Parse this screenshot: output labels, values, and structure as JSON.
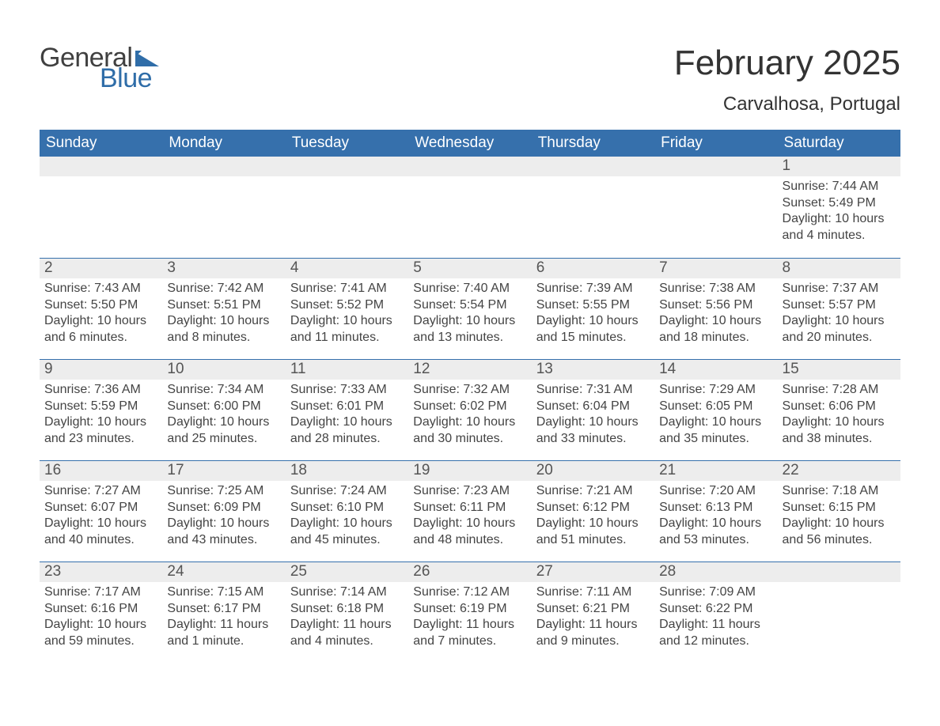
{
  "brand": {
    "general": "General",
    "blue": "Blue",
    "flag_color": "#2f6da8"
  },
  "title": "February 2025",
  "location": "Carvalhosa, Portugal",
  "weekday_headers": [
    "Sunday",
    "Monday",
    "Tuesday",
    "Wednesday",
    "Thursday",
    "Friday",
    "Saturday"
  ],
  "colors": {
    "header_bg": "#3670ac",
    "header_text": "#ffffff",
    "bar_bg": "#ededed",
    "bar_text": "#555555",
    "body_text": "#444444",
    "rule": "#3670ac"
  },
  "typography": {
    "title_fontsize": 44,
    "location_fontsize": 24,
    "header_fontsize": 19,
    "daynum_fontsize": 19,
    "body_fontsize": 16
  },
  "layout": {
    "cols": 7,
    "rows": 5,
    "first_weekday_index": 6,
    "days_in_month": 28
  },
  "weeks": [
    [
      null,
      null,
      null,
      null,
      null,
      null,
      {
        "n": "1",
        "sunrise": "Sunrise: 7:44 AM",
        "sunset": "Sunset: 5:49 PM",
        "day1": "Daylight: 10 hours",
        "day2": "and 4 minutes."
      }
    ],
    [
      {
        "n": "2",
        "sunrise": "Sunrise: 7:43 AM",
        "sunset": "Sunset: 5:50 PM",
        "day1": "Daylight: 10 hours",
        "day2": "and 6 minutes."
      },
      {
        "n": "3",
        "sunrise": "Sunrise: 7:42 AM",
        "sunset": "Sunset: 5:51 PM",
        "day1": "Daylight: 10 hours",
        "day2": "and 8 minutes."
      },
      {
        "n": "4",
        "sunrise": "Sunrise: 7:41 AM",
        "sunset": "Sunset: 5:52 PM",
        "day1": "Daylight: 10 hours",
        "day2": "and 11 minutes."
      },
      {
        "n": "5",
        "sunrise": "Sunrise: 7:40 AM",
        "sunset": "Sunset: 5:54 PM",
        "day1": "Daylight: 10 hours",
        "day2": "and 13 minutes."
      },
      {
        "n": "6",
        "sunrise": "Sunrise: 7:39 AM",
        "sunset": "Sunset: 5:55 PM",
        "day1": "Daylight: 10 hours",
        "day2": "and 15 minutes."
      },
      {
        "n": "7",
        "sunrise": "Sunrise: 7:38 AM",
        "sunset": "Sunset: 5:56 PM",
        "day1": "Daylight: 10 hours",
        "day2": "and 18 minutes."
      },
      {
        "n": "8",
        "sunrise": "Sunrise: 7:37 AM",
        "sunset": "Sunset: 5:57 PM",
        "day1": "Daylight: 10 hours",
        "day2": "and 20 minutes."
      }
    ],
    [
      {
        "n": "9",
        "sunrise": "Sunrise: 7:36 AM",
        "sunset": "Sunset: 5:59 PM",
        "day1": "Daylight: 10 hours",
        "day2": "and 23 minutes."
      },
      {
        "n": "10",
        "sunrise": "Sunrise: 7:34 AM",
        "sunset": "Sunset: 6:00 PM",
        "day1": "Daylight: 10 hours",
        "day2": "and 25 minutes."
      },
      {
        "n": "11",
        "sunrise": "Sunrise: 7:33 AM",
        "sunset": "Sunset: 6:01 PM",
        "day1": "Daylight: 10 hours",
        "day2": "and 28 minutes."
      },
      {
        "n": "12",
        "sunrise": "Sunrise: 7:32 AM",
        "sunset": "Sunset: 6:02 PM",
        "day1": "Daylight: 10 hours",
        "day2": "and 30 minutes."
      },
      {
        "n": "13",
        "sunrise": "Sunrise: 7:31 AM",
        "sunset": "Sunset: 6:04 PM",
        "day1": "Daylight: 10 hours",
        "day2": "and 33 minutes."
      },
      {
        "n": "14",
        "sunrise": "Sunrise: 7:29 AM",
        "sunset": "Sunset: 6:05 PM",
        "day1": "Daylight: 10 hours",
        "day2": "and 35 minutes."
      },
      {
        "n": "15",
        "sunrise": "Sunrise: 7:28 AM",
        "sunset": "Sunset: 6:06 PM",
        "day1": "Daylight: 10 hours",
        "day2": "and 38 minutes."
      }
    ],
    [
      {
        "n": "16",
        "sunrise": "Sunrise: 7:27 AM",
        "sunset": "Sunset: 6:07 PM",
        "day1": "Daylight: 10 hours",
        "day2": "and 40 minutes."
      },
      {
        "n": "17",
        "sunrise": "Sunrise: 7:25 AM",
        "sunset": "Sunset: 6:09 PM",
        "day1": "Daylight: 10 hours",
        "day2": "and 43 minutes."
      },
      {
        "n": "18",
        "sunrise": "Sunrise: 7:24 AM",
        "sunset": "Sunset: 6:10 PM",
        "day1": "Daylight: 10 hours",
        "day2": "and 45 minutes."
      },
      {
        "n": "19",
        "sunrise": "Sunrise: 7:23 AM",
        "sunset": "Sunset: 6:11 PM",
        "day1": "Daylight: 10 hours",
        "day2": "and 48 minutes."
      },
      {
        "n": "20",
        "sunrise": "Sunrise: 7:21 AM",
        "sunset": "Sunset: 6:12 PM",
        "day1": "Daylight: 10 hours",
        "day2": "and 51 minutes."
      },
      {
        "n": "21",
        "sunrise": "Sunrise: 7:20 AM",
        "sunset": "Sunset: 6:13 PM",
        "day1": "Daylight: 10 hours",
        "day2": "and 53 minutes."
      },
      {
        "n": "22",
        "sunrise": "Sunrise: 7:18 AM",
        "sunset": "Sunset: 6:15 PM",
        "day1": "Daylight: 10 hours",
        "day2": "and 56 minutes."
      }
    ],
    [
      {
        "n": "23",
        "sunrise": "Sunrise: 7:17 AM",
        "sunset": "Sunset: 6:16 PM",
        "day1": "Daylight: 10 hours",
        "day2": "and 59 minutes."
      },
      {
        "n": "24",
        "sunrise": "Sunrise: 7:15 AM",
        "sunset": "Sunset: 6:17 PM",
        "day1": "Daylight: 11 hours",
        "day2": "and 1 minute."
      },
      {
        "n": "25",
        "sunrise": "Sunrise: 7:14 AM",
        "sunset": "Sunset: 6:18 PM",
        "day1": "Daylight: 11 hours",
        "day2": "and 4 minutes."
      },
      {
        "n": "26",
        "sunrise": "Sunrise: 7:12 AM",
        "sunset": "Sunset: 6:19 PM",
        "day1": "Daylight: 11 hours",
        "day2": "and 7 minutes."
      },
      {
        "n": "27",
        "sunrise": "Sunrise: 7:11 AM",
        "sunset": "Sunset: 6:21 PM",
        "day1": "Daylight: 11 hours",
        "day2": "and 9 minutes."
      },
      {
        "n": "28",
        "sunrise": "Sunrise: 7:09 AM",
        "sunset": "Sunset: 6:22 PM",
        "day1": "Daylight: 11 hours",
        "day2": "and 12 minutes."
      },
      null
    ]
  ]
}
